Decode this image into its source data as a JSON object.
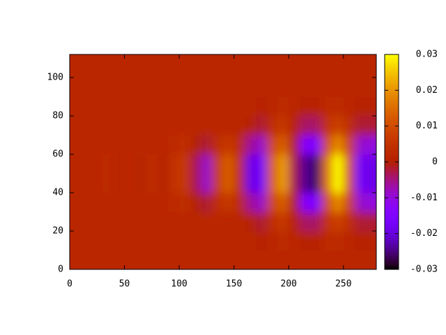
{
  "chart_data": {
    "type": "heatmap",
    "x": [
      5,
      15,
      25,
      35,
      45,
      55,
      65,
      75,
      85,
      95,
      105,
      115,
      125,
      135,
      145,
      155,
      165,
      175,
      185,
      195,
      205,
      215,
      225,
      235,
      245,
      255,
      265,
      275
    ],
    "y": [
      5,
      15,
      25,
      35,
      45,
      55,
      65,
      75,
      85,
      95,
      105
    ],
    "z": [
      [
        0.002,
        0.002,
        0.002,
        0.002,
        0.002,
        0.002,
        0.002,
        0.002,
        0.002,
        0.002,
        0.002,
        0.002,
        0.002,
        0.002,
        0.002,
        0.002,
        0.002,
        0.002,
        0.002,
        0.002,
        0.002,
        0.002,
        0.002,
        0.002,
        0.002,
        0.002,
        0.002,
        0.002
      ],
      [
        0.002,
        0.002,
        0.002,
        0.002,
        0.002,
        0.002,
        0.002,
        0.002,
        0.002,
        0.002,
        0.002,
        0.002,
        0.002,
        0.002,
        0.002,
        0.002,
        0.002,
        0.001,
        0.002,
        0.003,
        0.002,
        0.001,
        0.001,
        0.003,
        0.003,
        0.002,
        0.001,
        0.001
      ],
      [
        0.002,
        0.002,
        0.002,
        0.002,
        0.002,
        0.002,
        0.002,
        0.002,
        0.002,
        0.002,
        0.002,
        0.002,
        0.002,
        0.002,
        0.002,
        0.002,
        0.001,
        -0.002,
        0.004,
        0.006,
        0.001,
        -0.004,
        -0.004,
        0.005,
        0.008,
        0.004,
        -0.002,
        -0.002
      ],
      [
        0.002,
        0.002,
        0.002,
        0.002,
        0.002,
        0.002,
        0.002,
        0.002,
        0.002,
        0.003,
        0.004,
        0,
        -0.002,
        0.004,
        0.006,
        0.003,
        -0.006,
        -0.009,
        0.009,
        0.013,
        -0.001,
        -0.014,
        -0.015,
        0.01,
        0.019,
        0.008,
        -0.009,
        -0.01
      ],
      [
        0.002,
        0.002,
        0.002,
        0.003,
        0.001,
        0.003,
        0,
        0.004,
        0,
        0.005,
        0.006,
        -0.003,
        -0.009,
        0.007,
        0.013,
        0.004,
        -0.019,
        -0.017,
        0.013,
        0.021,
        -0.003,
        -0.024,
        -0.026,
        0.016,
        0.03,
        0.011,
        -0.017,
        -0.019
      ],
      [
        0.002,
        0.002,
        0.002,
        0.003,
        0.001,
        0.003,
        0,
        0.004,
        0,
        0.005,
        0.006,
        -0.003,
        -0.009,
        0.007,
        0.013,
        0.004,
        -0.019,
        -0.017,
        0.013,
        0.021,
        -0.003,
        -0.024,
        -0.026,
        0.016,
        0.03,
        0.011,
        -0.017,
        -0.019
      ],
      [
        0.002,
        0.002,
        0.002,
        0.002,
        0.002,
        0.002,
        0.002,
        0.002,
        0.002,
        0.003,
        0.004,
        0,
        -0.002,
        0.004,
        0.006,
        0.003,
        -0.006,
        -0.009,
        0.009,
        0.013,
        -0.001,
        -0.014,
        -0.015,
        0.01,
        0.019,
        0.008,
        -0.009,
        -0.01
      ],
      [
        0.002,
        0.002,
        0.002,
        0.002,
        0.002,
        0.002,
        0.002,
        0.002,
        0.002,
        0.002,
        0.002,
        0.002,
        0.002,
        0.002,
        0.002,
        0.002,
        0.001,
        -0.002,
        0.004,
        0.006,
        0.001,
        -0.004,
        -0.004,
        0.005,
        0.008,
        0.004,
        -0.002,
        -0.002
      ],
      [
        0.002,
        0.002,
        0.002,
        0.002,
        0.002,
        0.002,
        0.002,
        0.002,
        0.002,
        0.002,
        0.002,
        0.002,
        0.002,
        0.002,
        0.002,
        0.002,
        0.002,
        0.001,
        0.002,
        0.003,
        0.002,
        0.001,
        0.001,
        0.003,
        0.003,
        0.002,
        0.001,
        0.001
      ],
      [
        0.002,
        0.002,
        0.002,
        0.002,
        0.002,
        0.002,
        0.002,
        0.002,
        0.002,
        0.002,
        0.002,
        0.002,
        0.002,
        0.002,
        0.002,
        0.002,
        0.002,
        0.002,
        0.002,
        0.002,
        0.002,
        0.002,
        0.002,
        0.002,
        0.002,
        0.002,
        0.002,
        0.002
      ],
      [
        0.002,
        0.002,
        0.002,
        0.002,
        0.002,
        0.002,
        0.002,
        0.002,
        0.002,
        0.002,
        0.002,
        0.002,
        0.002,
        0.002,
        0.002,
        0.002,
        0.002,
        0.002,
        0.002,
        0.002,
        0.002,
        0.002,
        0.002,
        0.002,
        0.002,
        0.002,
        0.002,
        0.002
      ]
    ],
    "xlim": [
      0,
      280
    ],
    "xticks": [
      0,
      50,
      100,
      150,
      200,
      250
    ],
    "ylim": [
      0,
      112
    ],
    "yticks": [
      0,
      20,
      40,
      60,
      80,
      100
    ],
    "cblim": [
      -0.03,
      0.03
    ],
    "cbticks": [
      -0.03,
      -0.02,
      -0.01,
      0,
      0.01,
      0.02,
      0.03
    ]
  }
}
